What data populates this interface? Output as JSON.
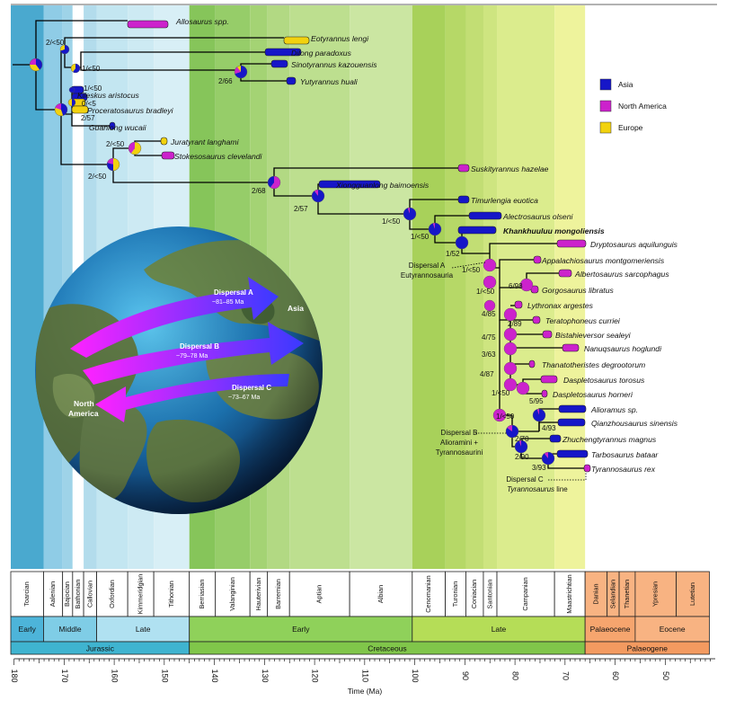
{
  "legend": [
    {
      "label": "Asia",
      "color": "#1616c8"
    },
    {
      "label": "North America",
      "color": "#cc22cc"
    },
    {
      "label": "Europe",
      "color": "#f2d20f"
    }
  ],
  "taxa": [
    {
      "name": "Allosaurus spp.",
      "region": "na",
      "bold": false
    },
    {
      "name": "Eotyrannus lengi",
      "region": "eu",
      "bold": false
    },
    {
      "name": "Dilong paradoxus",
      "region": "as",
      "bold": false
    },
    {
      "name": "Sinotyrannus kazouensis",
      "region": "as",
      "bold": false
    },
    {
      "name": "Yutyrannus huali",
      "region": "as",
      "bold": false
    },
    {
      "name": "Kileskus aristocus",
      "region": "as",
      "bold": false
    },
    {
      "name": "Proceratosaurus bradleyi",
      "region": "eu",
      "bold": false
    },
    {
      "name": "Guanlong wucaii",
      "region": "as",
      "bold": false
    },
    {
      "name": "Juratyrant langhami",
      "region": "eu",
      "bold": false
    },
    {
      "name": "Stokesosaurus clevelandi",
      "region": "na",
      "bold": false
    },
    {
      "name": "Suskityrannus hazelae",
      "region": "na",
      "bold": false
    },
    {
      "name": "Xiongguanlong baimoensis",
      "region": "as",
      "bold": false
    },
    {
      "name": "Timurlengia euotica",
      "region": "as",
      "bold": false
    },
    {
      "name": "Alectrosaurus olseni",
      "region": "as",
      "bold": false
    },
    {
      "name": "Khankhuuluu mongoliensis",
      "region": "as",
      "bold": true
    },
    {
      "name": "Dryptosaurus aquilunguis",
      "region": "na",
      "bold": false
    },
    {
      "name": "Appalachiosaurus montgomeriensis",
      "region": "na",
      "bold": false
    },
    {
      "name": "Albertosaurus sarcophagus",
      "region": "na",
      "bold": false
    },
    {
      "name": "Gorgosaurus libratus",
      "region": "na",
      "bold": false
    },
    {
      "name": "Lythronax argestes",
      "region": "na",
      "bold": false
    },
    {
      "name": "Teratophoneus curriei",
      "region": "na",
      "bold": false
    },
    {
      "name": "Bistahieversor sealeyi",
      "region": "na",
      "bold": false
    },
    {
      "name": "Nanuqsaurus hoglundi",
      "region": "na",
      "bold": false
    },
    {
      "name": "Thanatotheristes degrootorum",
      "region": "na",
      "bold": false
    },
    {
      "name": "Daspletosaurus torosus",
      "region": "na",
      "bold": false
    },
    {
      "name": "Daspletosaurus horneri",
      "region": "na",
      "bold": false
    },
    {
      "name": "Alioramus sp.",
      "region": "as",
      "bold": false
    },
    {
      "name": "Qianzhousaurus sinensis",
      "region": "as",
      "bold": false
    },
    {
      "name": "Zhuchengtyrannus magnus",
      "region": "as",
      "bold": false
    },
    {
      "name": "Tarbosaurus bataar",
      "region": "as",
      "bold": false
    },
    {
      "name": "Tyrannosaurus rex",
      "region": "na",
      "bold": false
    }
  ],
  "support_values": [
    "2/<50",
    "1/<50",
    "1/<50",
    "0/<5",
    "2/57",
    "2/66",
    "2/<50",
    "2/<50",
    "2/68",
    "2/57",
    "1/<50",
    "1/<50",
    "1/52",
    "1/<50",
    "1/<50",
    "6/98",
    "4/85",
    "2/89",
    "4/75",
    "3/63",
    "4/87",
    "1/<50",
    "5/95",
    "1/<50",
    "4/93",
    "2/70",
    "2/90",
    "3/93"
  ],
  "annotations": {
    "dispersal_a": [
      "Dispersal A",
      "Eutyrannosauria"
    ],
    "dispersal_b": [
      "Dispersal B",
      "Alioramini +",
      "Tyrannosaurini"
    ],
    "dispersal_c": [
      "Dispersal C",
      "Tyrannosaurus line"
    ]
  },
  "globe": {
    "arrows": [
      {
        "title": "Dispersal A",
        "range": "~81–85 Ma"
      },
      {
        "title": "Dispersal B",
        "range": "~79–78 Ma"
      },
      {
        "title": "Dispersal C",
        "range": "~73–67 Ma"
      }
    ],
    "asia": "Asia",
    "north_america": [
      "North",
      "America"
    ]
  },
  "timescale": {
    "stages": [
      "Toarcian",
      "Aalenian",
      "Bajocian",
      "Bathonian",
      "Callovian",
      "Oxfordian",
      "Kimmeridgian",
      "Tithonian",
      "Berriasian",
      "Valanginian",
      "Hauterivian",
      "Barremian",
      "Aptian",
      "Albian",
      "Cenomanian",
      "Turonian",
      "Coniacian",
      "Santonian",
      "Campanian",
      "Maastrichtian",
      "Danian",
      "Selandian",
      "Thanetian",
      "Ypresian",
      "Lutetian"
    ],
    "epochs": [
      "Early",
      "Middle",
      "Late",
      "Early",
      "Late",
      "Palaeocene",
      "Eocene"
    ],
    "periods": [
      "Jurassic",
      "Cretaceous",
      "Palaeogene"
    ]
  },
  "axis": {
    "ticks": [
      "180",
      "170",
      "160",
      "150",
      "140",
      "130",
      "120",
      "110",
      "100",
      "90",
      "80",
      "70",
      "60",
      "50"
    ],
    "title": "Time (Ma)"
  }
}
